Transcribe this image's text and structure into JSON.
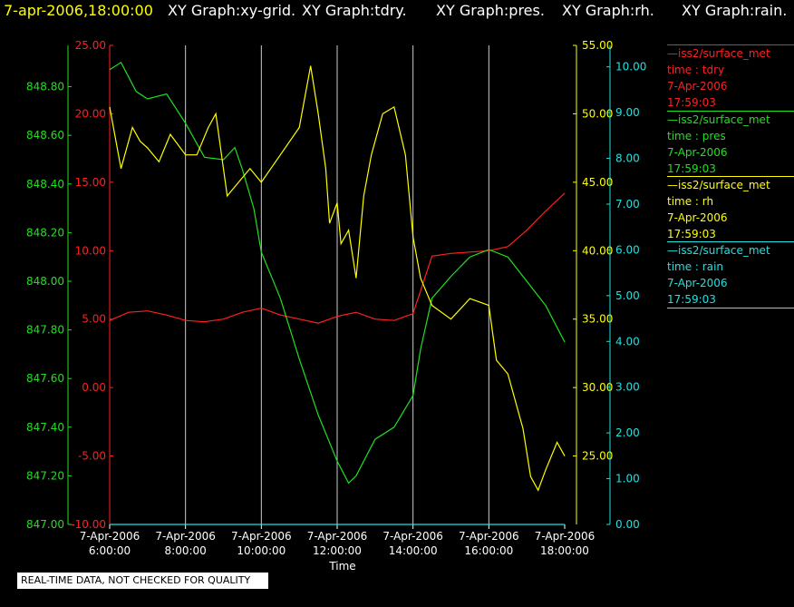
{
  "header": {
    "datetime": "7-apr-2006,18:00:00",
    "graphs": [
      "XY Graph:xy-grid.",
      "XY Graph:tdry.",
      "XY Graph:pres.",
      "XY Graph:rh.",
      "XY Graph:rain."
    ]
  },
  "notice": "REAL-TIME DATA, NOT CHECKED FOR QUALITY",
  "colors": {
    "tdry": "#ff2020",
    "pres": "#20e020",
    "rh": "#ffff00",
    "rain": "#20e0e0",
    "grid": "#cccccc"
  },
  "legend": [
    {
      "name": "—iss2/surface_met",
      "var": "time : tdry",
      "date": "7-Apr-2006",
      "time": "17:59:03",
      "color": "#ff2020"
    },
    {
      "name": "—iss2/surface_met",
      "var": "time : pres",
      "date": "7-Apr-2006",
      "time": "17:59:03",
      "color": "#20e020"
    },
    {
      "name": "—iss2/surface_met",
      "var": "time : rh",
      "date": "7-Apr-2006",
      "time": "17:59:03",
      "color": "#ffff00"
    },
    {
      "name": "—iss2/surface_met",
      "var": "time : rain",
      "date": "7-Apr-2006",
      "time": "17:59:03",
      "color": "#20e0e0"
    }
  ],
  "chart_data": {
    "type": "line",
    "xlabel": "Time",
    "x_ticks": [
      {
        "date": "7-Apr-2006",
        "time": "6:00:00"
      },
      {
        "date": "7-Apr-2006",
        "time": "8:00:00"
      },
      {
        "date": "7-Apr-2006",
        "time": "10:00:00"
      },
      {
        "date": "7-Apr-2006",
        "time": "12:00:00"
      },
      {
        "date": "7-Apr-2006",
        "time": "14:00:00"
      },
      {
        "date": "7-Apr-2006",
        "time": "16:00:00"
      },
      {
        "date": "7-Apr-2006",
        "time": "18:00:00"
      }
    ],
    "xlim": [
      "7-Apr-2006 6:00:00",
      "7-Apr-2006 18:00:00"
    ],
    "grid": true,
    "axes": {
      "pres": {
        "ylim": [
          847.0,
          848.97
        ],
        "ticks": [
          "847.00",
          "847.20",
          "847.40",
          "847.60",
          "847.80",
          "848.00",
          "848.20",
          "848.40",
          "848.60",
          "848.80"
        ]
      },
      "tdry": {
        "ylim": [
          -10.0,
          25.0
        ],
        "ticks": [
          "-10.00",
          "-5.00",
          "0.00",
          "5.00",
          "10.00",
          "15.00",
          "20.00",
          "25.00"
        ]
      },
      "rh": {
        "ylim": [
          20.0,
          55.0
        ],
        "ticks": [
          "25.00",
          "30.00",
          "35.00",
          "40.00",
          "45.00",
          "50.00",
          "55.00"
        ]
      },
      "rain": {
        "ylim": [
          0.0,
          10.47
        ],
        "ticks": [
          "0.00",
          "1.00",
          "2.00",
          "3.00",
          "4.00",
          "5.00",
          "6.00",
          "7.00",
          "8.00",
          "9.00",
          "10.00"
        ]
      }
    },
    "series": [
      {
        "name": "tdry",
        "x_hours": [
          6.0,
          6.5,
          7.0,
          7.5,
          8.0,
          8.5,
          9.0,
          9.5,
          10.0,
          10.5,
          11.0,
          11.5,
          12.0,
          12.5,
          13.0,
          13.5,
          14.0,
          14.5,
          15.0,
          15.5,
          16.0,
          16.5,
          17.0,
          17.5,
          18.0
        ],
        "values": [
          4.9,
          5.5,
          5.6,
          5.3,
          4.9,
          4.8,
          5.0,
          5.5,
          5.8,
          5.3,
          5.0,
          4.7,
          5.2,
          5.5,
          5.0,
          4.9,
          5.4,
          9.6,
          9.8,
          9.9,
          10.0,
          10.3,
          11.5,
          12.9,
          14.2
        ]
      },
      {
        "name": "pres",
        "x_hours": [
          6.0,
          6.3,
          6.7,
          7.0,
          7.5,
          8.0,
          8.5,
          9.0,
          9.3,
          9.5,
          9.8,
          10.0,
          10.5,
          11.0,
          11.5,
          12.0,
          12.3,
          12.5,
          13.0,
          13.5,
          14.0,
          14.2,
          14.5,
          15.0,
          15.5,
          16.0,
          16.5,
          17.0,
          17.5,
          18.0
        ],
        "values": [
          848.87,
          848.9,
          848.78,
          848.75,
          848.77,
          848.65,
          848.51,
          848.5,
          848.55,
          848.46,
          848.3,
          848.12,
          847.93,
          847.68,
          847.45,
          847.26,
          847.17,
          847.2,
          847.35,
          847.4,
          847.53,
          847.72,
          847.93,
          848.02,
          848.1,
          848.13,
          848.1,
          848.0,
          847.9,
          847.75
        ]
      },
      {
        "name": "rh",
        "x_hours": [
          6.0,
          6.3,
          6.6,
          6.8,
          7.0,
          7.3,
          7.6,
          8.0,
          8.3,
          8.6,
          8.8,
          9.1,
          9.4,
          9.7,
          10.0,
          10.5,
          11.0,
          11.3,
          11.5,
          11.7,
          11.8,
          12.0,
          12.1,
          12.3,
          12.5,
          12.7,
          12.9,
          13.2,
          13.5,
          13.8,
          14.0,
          14.2,
          14.5,
          15.0,
          15.5,
          16.0,
          16.2,
          16.5,
          16.9,
          17.1,
          17.3,
          17.5,
          17.8,
          18.0
        ],
        "values": [
          50.5,
          46.0,
          49.0,
          48.0,
          47.5,
          46.5,
          48.5,
          47.0,
          47.0,
          49.0,
          50.0,
          44.0,
          45.0,
          46.0,
          45.0,
          47.0,
          49.0,
          53.5,
          50.0,
          46.0,
          42.0,
          43.5,
          40.5,
          41.5,
          38.0,
          44.0,
          47.0,
          50.0,
          50.5,
          47.0,
          41.0,
          38.0,
          36.0,
          35.0,
          36.5,
          36.0,
          32.0,
          31.0,
          27.0,
          23.5,
          22.5,
          24.0,
          26.0,
          25.0
        ]
      },
      {
        "name": "rain",
        "x_hours": [
          6.0,
          18.0
        ],
        "values": [
          0.0,
          0.0
        ]
      }
    ]
  }
}
